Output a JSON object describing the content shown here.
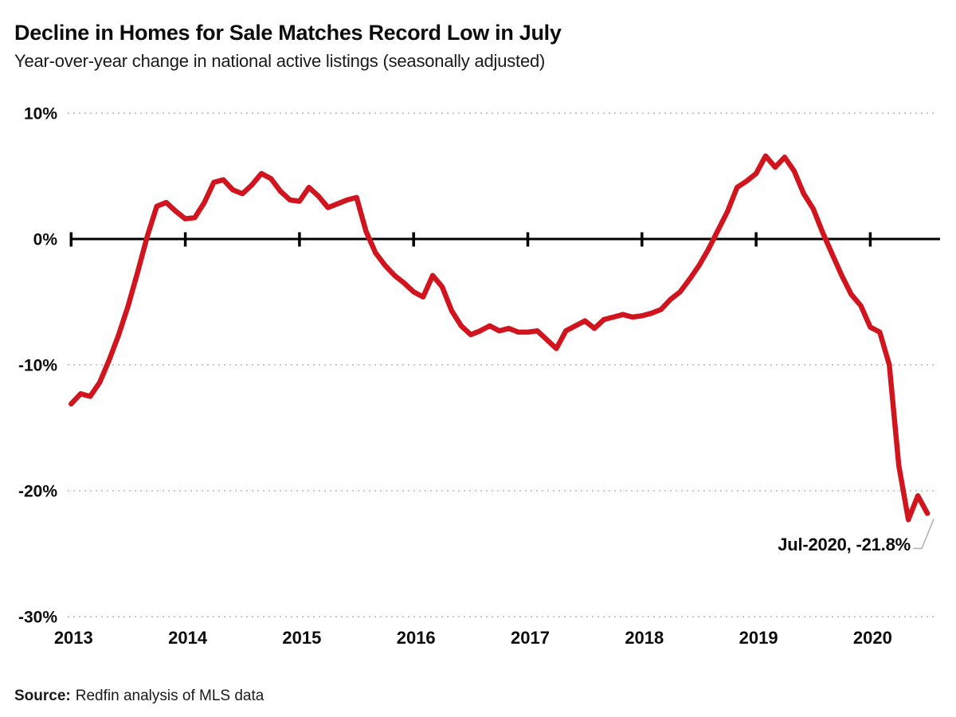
{
  "header": {
    "title": "Decline in Homes for Sale Matches Record Low in July",
    "subtitle": "Year-over-year change in national active listings (seasonally adjusted)"
  },
  "annotation": {
    "text": "Jul-2020, -21.8%"
  },
  "source": {
    "label": "Source:",
    "text": "Redfin analysis of MLS data"
  },
  "chart_data": {
    "type": "line",
    "title": "Decline in Homes for Sale Matches Record Low in July",
    "subtitle": "Year-over-year change in national active listings (seasonally adjusted)",
    "x_start": "2013-01",
    "x_end": "2020-07",
    "x_frequency": "monthly",
    "series": [
      {
        "name": "Year-over-year change in national active listings",
        "color": "#d1151f",
        "values": [
          -13.1,
          -12.3,
          -12.5,
          -11.4,
          -9.6,
          -7.6,
          -5.3,
          -2.6,
          0.2,
          2.6,
          2.9,
          2.2,
          1.6,
          1.7,
          2.9,
          4.5,
          4.7,
          3.9,
          3.6,
          4.3,
          5.2,
          4.8,
          3.8,
          3.1,
          3.0,
          4.1,
          3.4,
          2.5,
          2.8,
          3.1,
          3.3,
          0.6,
          -1.1,
          -2.1,
          -2.9,
          -3.5,
          -4.2,
          -4.6,
          -2.9,
          -3.8,
          -5.7,
          -6.9,
          -7.6,
          -7.3,
          -6.9,
          -7.3,
          -7.1,
          -7.4,
          -7.4,
          -7.3,
          -8.0,
          -8.7,
          -7.3,
          -6.9,
          -6.5,
          -7.1,
          -6.4,
          -6.2,
          -6.0,
          -6.2,
          -6.1,
          -5.9,
          -5.6,
          -4.8,
          -4.2,
          -3.2,
          -2.1,
          -0.8,
          0.7,
          2.2,
          4.1,
          4.6,
          5.2,
          6.6,
          5.7,
          6.5,
          5.4,
          3.6,
          2.4,
          0.5,
          -1.2,
          -2.9,
          -4.4,
          -5.3,
          -7.0,
          -7.4,
          -10.0,
          -18.0,
          -22.3,
          -20.4,
          -21.8
        ]
      }
    ],
    "x_ticks": [
      {
        "value": 2013,
        "label": "2013"
      },
      {
        "value": 2014,
        "label": "2014"
      },
      {
        "value": 2015,
        "label": "2015"
      },
      {
        "value": 2016,
        "label": "2016"
      },
      {
        "value": 2017,
        "label": "2017"
      },
      {
        "value": 2018,
        "label": "2018"
      },
      {
        "value": 2019,
        "label": "2019"
      },
      {
        "value": 2020,
        "label": "2020"
      }
    ],
    "y_ticks": [
      {
        "value": 10,
        "label": "10%"
      },
      {
        "value": 0,
        "label": "0%"
      },
      {
        "value": -10,
        "label": "-10%"
      },
      {
        "value": -20,
        "label": "-20%"
      },
      {
        "value": -30,
        "label": "-30%"
      }
    ],
    "ylim": [
      -30,
      10
    ],
    "grid": "dotted horizontal gridlines at non-zero ticks; solid black zero axis with yearly tick marks",
    "legend": "none",
    "annotation": {
      "x": "2020-07",
      "y": -21.8,
      "label": "Jul-2020, -21.8%"
    },
    "colors": {
      "line": "#d1151f",
      "gridline": "#c9c9c9",
      "zero_axis": "#000000",
      "leader_line": "#b3b3b3",
      "text": "#0d0d0d"
    }
  }
}
